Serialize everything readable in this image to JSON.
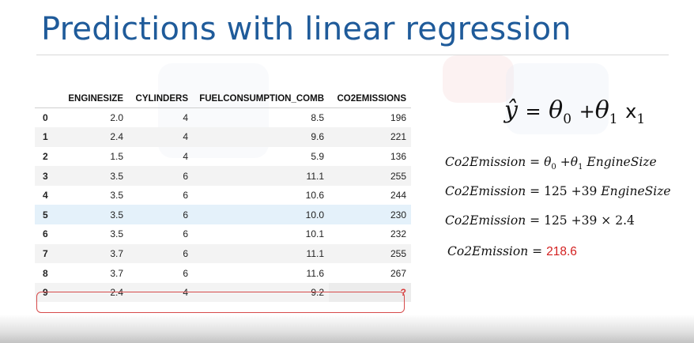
{
  "title": "Predictions with linear regression",
  "table": {
    "columns": [
      "",
      "ENGINESIZE",
      "CYLINDERS",
      "FUELCONSUMPTION_COMB",
      "CO2EMISSIONS"
    ],
    "rows": [
      [
        "0",
        "2.0",
        "4",
        "8.5",
        "196"
      ],
      [
        "1",
        "2.4",
        "4",
        "9.6",
        "221"
      ],
      [
        "2",
        "1.5",
        "4",
        "5.9",
        "136"
      ],
      [
        "3",
        "3.5",
        "6",
        "11.1",
        "255"
      ],
      [
        "4",
        "3.5",
        "6",
        "10.6",
        "244"
      ],
      [
        "5",
        "3.5",
        "6",
        "10.0",
        "230"
      ],
      [
        "6",
        "3.5",
        "6",
        "10.1",
        "232"
      ],
      [
        "7",
        "3.7",
        "6",
        "11.1",
        "255"
      ],
      [
        "8",
        "3.7",
        "6",
        "11.6",
        "267"
      ],
      [
        "9",
        "2.4",
        "4",
        "9.2",
        "?"
      ]
    ]
  },
  "equations": {
    "main": {
      "yhat": "ŷ",
      "eq": "=",
      "theta0": "θ",
      "sub0": "0",
      "plus": "+",
      "theta1": "θ",
      "sub1": "1",
      "x": "x",
      "subx": "1"
    },
    "line1": {
      "lhs": "Co2Emission",
      "eq": "=",
      "theta0": "θ",
      "sub0": "0",
      "plus": "+",
      "theta1": "θ",
      "sub1": "1",
      "var": "EngineSize"
    },
    "line2": {
      "lhs": "Co2Emission",
      "eq": "=",
      "c0": "125",
      "plus": "+",
      "c1": "39",
      "var": "EngineSize"
    },
    "line3": {
      "lhs": "Co2Emission",
      "eq": "=",
      "c0": "125",
      "plus": "+",
      "c1": "39",
      "times": "×",
      "val": "2.4"
    },
    "line4": {
      "lhs": "Co2Emission",
      "eq": "=",
      "result": "218.6"
    }
  },
  "colors": {
    "title": "#1f5b9a",
    "highlight": "#d31f1f",
    "selected_row": "#e4f1fa"
  }
}
